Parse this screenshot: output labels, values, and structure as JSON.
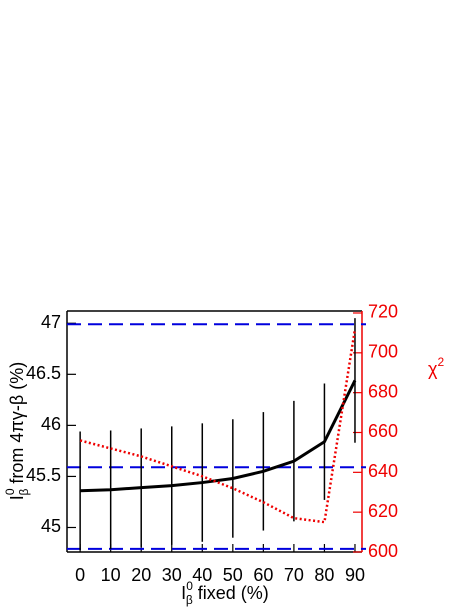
{
  "chart_data": {
    "type": "line",
    "xlabel": {
      "main": "I",
      "sup": "0",
      "sub": "β",
      "rest": " fixed (%)"
    },
    "ylabel": {
      "main": "I",
      "sup": "0",
      "sub": "β",
      "rest": " from 4πγ-β (%)"
    },
    "y2label": {
      "main": "χ",
      "sup": "2"
    },
    "x": [
      0,
      10,
      20,
      30,
      40,
      50,
      60,
      70,
      80,
      90
    ],
    "series": [
      {
        "color": "#000000",
        "values": [
          45.36,
          45.37,
          45.39,
          45.41,
          45.44,
          45.48,
          45.55,
          45.65,
          45.84,
          46.44
        ],
        "errors": [
          0.58,
          0.58,
          0.58,
          0.58,
          0.58,
          0.58,
          0.58,
          0.59,
          0.57,
          0.61
        ]
      },
      {
        "color": "#ee0000",
        "axis": "y2",
        "values": [
          656,
          652,
          648,
          643,
          638,
          632,
          625,
          617,
          615,
          712
        ]
      }
    ],
    "reference_lines": {
      "color": "#0000dd",
      "values": [
        46.99,
        45.59,
        44.79
      ]
    },
    "xlim": [
      -4.3,
      92.3
    ],
    "xticks": [
      0,
      10,
      20,
      30,
      40,
      50,
      60,
      70,
      80,
      90
    ],
    "ylim": [
      44.76,
      47.12
    ],
    "yticks": [
      45,
      45.5,
      46,
      46.5,
      47
    ],
    "y2lim": [
      600,
      721
    ],
    "y2ticks": [
      600,
      620,
      640,
      660,
      680,
      700,
      720
    ],
    "y2color": "#ee0000"
  }
}
